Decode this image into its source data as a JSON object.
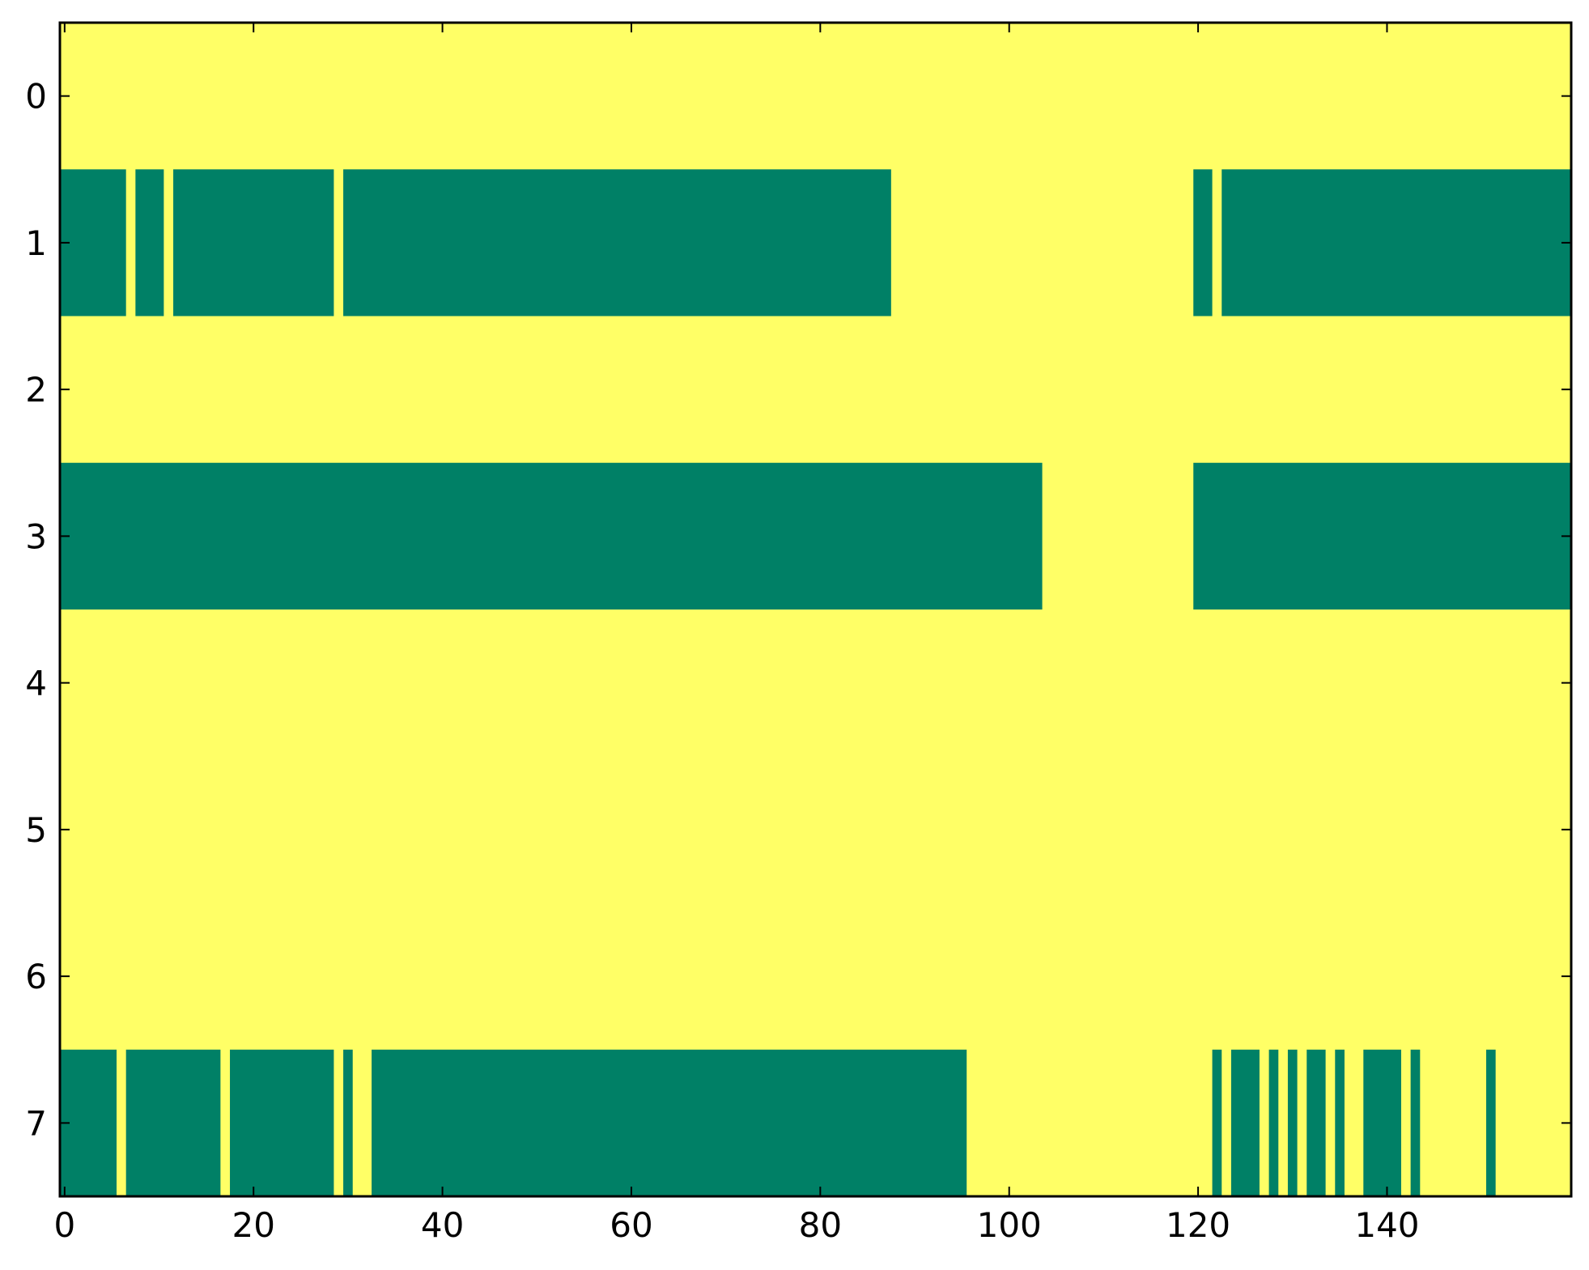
{
  "chart_data": {
    "type": "heatmap",
    "title": "",
    "xlabel": "",
    "ylabel": "",
    "xlim": [
      -0.5,
      159.5
    ],
    "ylim": [
      7.5,
      -0.5
    ],
    "x_ticks": [
      0,
      20,
      40,
      60,
      80,
      100,
      120,
      140
    ],
    "x_tick_labels": [
      "0",
      "20",
      "40",
      "60",
      "80",
      "100",
      "120",
      "140"
    ],
    "y_ticks": [
      0,
      1,
      2,
      3,
      4,
      5,
      6,
      7
    ],
    "y_tick_labels": [
      "0",
      "1",
      "2",
      "3",
      "4",
      "5",
      "6",
      "7"
    ],
    "colors": {
      "background": "#ffff66",
      "mark": "#008066"
    },
    "rows": [
      {
        "row": 0,
        "segments": []
      },
      {
        "row": 1,
        "segments": [
          [
            -0.5,
            6.5
          ],
          [
            7.5,
            10.5
          ],
          [
            11.5,
            28.5
          ],
          [
            29.5,
            87.5
          ],
          [
            119.5,
            121.5
          ],
          [
            122.5,
            159.5
          ]
        ]
      },
      {
        "row": 2,
        "segments": []
      },
      {
        "row": 3,
        "segments": [
          [
            -0.5,
            103.5
          ],
          [
            119.5,
            159.5
          ]
        ]
      },
      {
        "row": 4,
        "segments": []
      },
      {
        "row": 5,
        "segments": []
      },
      {
        "row": 6,
        "segments": []
      },
      {
        "row": 7,
        "segments": [
          [
            -0.5,
            5.5
          ],
          [
            6.5,
            16.5
          ],
          [
            17.5,
            28.5
          ],
          [
            29.5,
            30.5
          ],
          [
            32.5,
            95.5
          ],
          [
            121.5,
            122.5
          ],
          [
            123.5,
            126.5
          ],
          [
            127.5,
            128.5
          ],
          [
            129.5,
            130.5
          ],
          [
            131.5,
            133.5
          ],
          [
            134.5,
            135.5
          ],
          [
            137.5,
            141.5
          ],
          [
            142.5,
            143.5
          ],
          [
            150.5,
            151.5
          ]
        ]
      }
    ]
  }
}
